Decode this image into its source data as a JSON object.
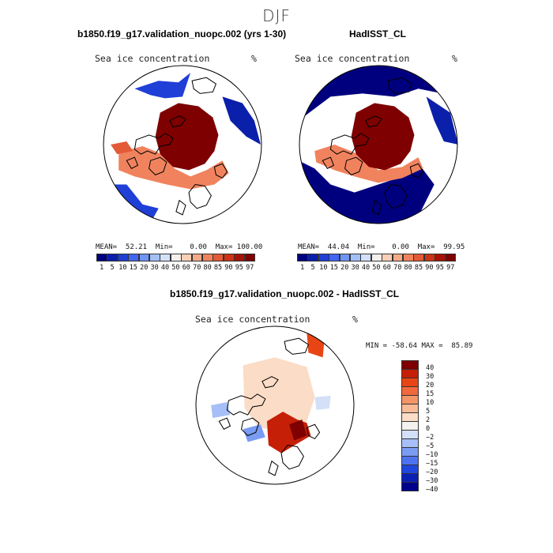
{
  "figure": {
    "season": "DJF",
    "variable_label": "Sea ice concentration",
    "unit": "%"
  },
  "panels": {
    "model": {
      "title": "b1850.f19_g17.validation_nuopc.002 (yrs 1-30)",
      "stats": "MEAN=  52.21  Min=    0.00  Max= 100.00"
    },
    "obs": {
      "title": "HadISST_CL",
      "stats": "MEAN=  44.04  Min=    0.00  Max=  99.95"
    },
    "diff": {
      "title": "b1850.f19_g17.validation_nuopc.002 - HadISST_CL",
      "stats": "MIN = -58.64 MAX =  85.89"
    }
  },
  "colorbars": {
    "abs": {
      "colors": [
        "#00007f",
        "#0a1faa",
        "#1f3fd6",
        "#4266f0",
        "#6f94f5",
        "#a3bff8",
        "#d3e0fa",
        "#f5f0ec",
        "#fbd0b6",
        "#f7aa86",
        "#f0835e",
        "#e25a36",
        "#cc3415",
        "#a81205",
        "#7e0000"
      ],
      "labels": [
        "1",
        "5",
        "10",
        "15",
        "20",
        "30",
        "40",
        "50",
        "60",
        "70",
        "80",
        "85",
        "90",
        "95",
        "97"
      ]
    },
    "diff": {
      "colors": [
        "#7e0000",
        "#c61f07",
        "#e84515",
        "#f1683d",
        "#f59467",
        "#f8bb95",
        "#fbdcc6",
        "#f4f1ee",
        "#d4dff8",
        "#a7bff7",
        "#7b9cf3",
        "#4f73ef",
        "#2146dd",
        "#0a20b4",
        "#00008a"
      ],
      "labels": [
        "40",
        "30",
        "20",
        "15",
        "10",
        "5",
        "2",
        "0",
        "−2",
        "−5",
        "−10",
        "−15",
        "−20",
        "−30",
        "−40"
      ]
    }
  },
  "chart_data": [
    {
      "type": "heatmap",
      "title": "b1850.f19_g17.validation_nuopc.002 (yrs 1-30)",
      "variable": "Sea ice concentration",
      "unit": "%",
      "projection": "polar stereographic (north)",
      "mean": 52.21,
      "min": 0.0,
      "max": 100.0,
      "levels": [
        1,
        5,
        10,
        15,
        20,
        30,
        40,
        50,
        60,
        70,
        80,
        85,
        90,
        95,
        97
      ]
    },
    {
      "type": "heatmap",
      "title": "HadISST_CL",
      "variable": "Sea ice concentration",
      "unit": "%",
      "projection": "polar stereographic (north)",
      "mean": 44.04,
      "min": 0.0,
      "max": 99.95,
      "levels": [
        1,
        5,
        10,
        15,
        20,
        30,
        40,
        50,
        60,
        70,
        80,
        85,
        90,
        95,
        97
      ]
    },
    {
      "type": "heatmap",
      "title": "b1850.f19_g17.validation_nuopc.002 - HadISST_CL",
      "variable": "Sea ice concentration",
      "unit": "%",
      "projection": "polar stereographic (north)",
      "min": -58.64,
      "max": 85.89,
      "levels": [
        -40,
        -30,
        -20,
        -15,
        -10,
        -5,
        -2,
        0,
        2,
        5,
        10,
        15,
        20,
        30,
        40
      ]
    }
  ]
}
